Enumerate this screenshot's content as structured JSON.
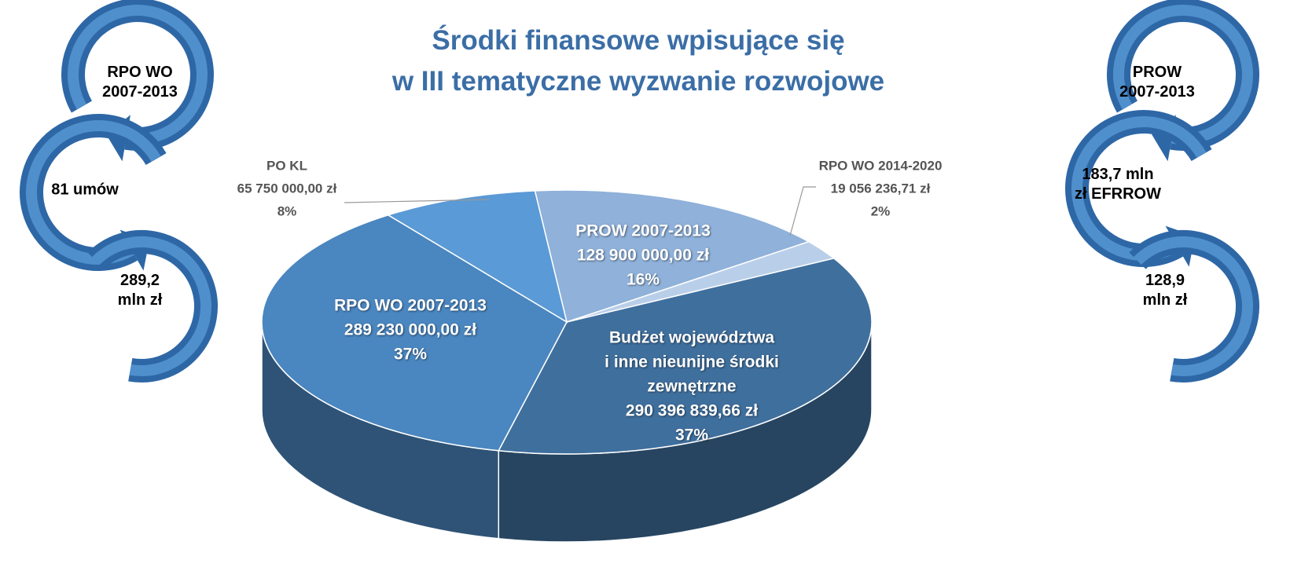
{
  "chart_data": {
    "type": "pie",
    "title": "Środki finansowe wpisujące się\nw III tematyczne wyzwanie rozwojowe",
    "categories": [
      "PROW 2007-2013",
      "RPO WO 2014-2020",
      "Budżet województwa\ni inne nieunijne środki\nzewnętrzne",
      "RPO WO 2007-2013",
      "PO KL"
    ],
    "values": [
      128900000,
      19056236.71,
      290396839.66,
      289230000,
      65750000
    ],
    "value_labels": [
      "128 900 000,00 zł",
      "19 056 236,71 zł",
      "290 396 839,66 zł",
      "289 230 000,00 zł",
      "65 750 000,00 zł"
    ],
    "percentages": [
      16,
      2,
      37,
      37,
      8
    ],
    "percentage_labels": [
      "16%",
      "2%",
      "37%",
      "37%",
      "8%"
    ],
    "colors": [
      "#8fb1da",
      "#b9cfe9",
      "#3f6f9d",
      "#4a86bf",
      "#5a9ad6"
    ]
  },
  "side_panels": [
    {
      "steps": [
        "RPO WO\n2007-2013",
        "81 umów",
        "289,2\nmln zł"
      ]
    },
    {
      "steps": [
        "PROW\n2007-2013",
        "183,7 mln\nzł EFRROW",
        "128,9\nmln zł"
      ]
    }
  ]
}
